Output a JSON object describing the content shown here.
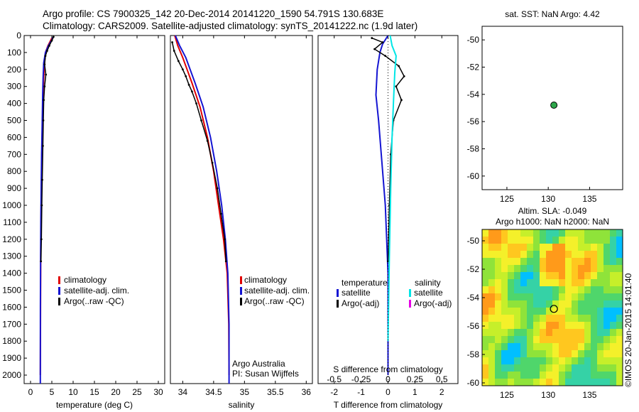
{
  "header": {
    "line1": "Argo profile: CS 7900325_142 20-Dec-2014 20141220_1590 54.791S 130.683E",
    "line2": "Climatology: CARS2009. Satellite-adjusted climatology: synTS_20141222.nc (1.9d later)"
  },
  "side_text": "©IMOS 20-Jan-2015 14:01:40",
  "colors": {
    "climatology": "#e00000",
    "satellite": "#1414d2",
    "argo": "#000000",
    "sal_satellite": "#00e6e6",
    "sal_argo": "#e600e6"
  },
  "chart_data": [
    {
      "type": "line",
      "panel": "temperature",
      "xlabel": "temperature (deg C)",
      "ylabel": "",
      "xlim": [
        -1.5,
        31.5
      ],
      "ylim": [
        2050,
        0
      ],
      "xticks": [
        "0",
        "5",
        "10",
        "15",
        "20",
        "25",
        "30"
      ],
      "yticks": [
        "0",
        "100",
        "200",
        "300",
        "400",
        "500",
        "600",
        "700",
        "800",
        "900",
        "1000",
        "1100",
        "1200",
        "1300",
        "1400",
        "1500",
        "1600",
        "1700",
        "1800",
        "1900",
        "2000"
      ],
      "legend": [
        "climatology",
        "satellite-adj. clim.",
        "Argo(..raw -QC)"
      ],
      "series": [
        {
          "name": "climatology",
          "color": "#e00000",
          "x": [
            5.0,
            4.7,
            4.1,
            3.5,
            3.3,
            3.1,
            2.95,
            2.8,
            2.65,
            2.55,
            2.45,
            2.4,
            2.35,
            2.3
          ],
          "y": [
            15,
            30,
            60,
            100,
            160,
            250,
            350,
            500,
            700,
            900,
            1100,
            1300,
            1600,
            2000
          ]
        },
        {
          "name": "satellite-adj. clim.",
          "color": "#1414d2",
          "x": [
            5.3,
            4.9,
            4.2,
            3.5,
            3.1,
            2.95,
            2.85,
            2.75,
            2.6,
            2.5,
            2.42,
            2.36,
            2.32,
            2.3
          ],
          "y": [
            10,
            30,
            60,
            100,
            160,
            250,
            350,
            500,
            700,
            900,
            1100,
            1300,
            1600,
            2050
          ]
        },
        {
          "name": "Argo(..raw -QC)",
          "color": "#000000",
          "x": [
            5.4,
            5.0,
            4.4,
            3.9,
            3.5,
            3.3,
            3.6,
            3.3,
            3.1,
            3.0,
            2.9,
            2.75,
            2.65,
            2.55,
            2.45
          ],
          "y": [
            8,
            30,
            60,
            90,
            120,
            170,
            230,
            300,
            380,
            500,
            650,
            850,
            1000,
            1200,
            1330
          ]
        }
      ]
    },
    {
      "type": "line",
      "panel": "salinity",
      "xlabel": "salinity",
      "ylabel": "",
      "xlim": [
        33.8,
        36.1
      ],
      "ylim": [
        2050,
        0
      ],
      "xticks": [
        "34",
        "34.5",
        "35",
        "35.5",
        "36"
      ],
      "legend": [
        "climatology",
        "satellite-adj. clim.",
        "Argo(..raw -QC)"
      ],
      "annotations": [
        "Argo Australia",
        "PI: Susan Wijffels"
      ],
      "series": [
        {
          "name": "climatology",
          "color": "#e00000",
          "x": [
            33.87,
            33.92,
            34.0,
            34.07,
            34.15,
            34.28,
            34.4,
            34.5,
            34.58,
            34.66,
            34.72,
            34.745,
            34.75
          ],
          "y": [
            0,
            60,
            130,
            200,
            280,
            420,
            600,
            800,
            1000,
            1200,
            1400,
            1700,
            2000
          ]
        },
        {
          "name": "satellite-adj. clim.",
          "color": "#1414d2",
          "x": [
            33.88,
            33.95,
            34.05,
            34.12,
            34.2,
            34.33,
            34.45,
            34.55,
            34.63,
            34.69,
            34.73,
            34.75,
            34.75
          ],
          "y": [
            0,
            60,
            130,
            200,
            280,
            420,
            600,
            800,
            1000,
            1200,
            1400,
            1700,
            2050
          ]
        },
        {
          "name": "Argo(..raw -QC)",
          "color": "#000000",
          "x": [
            33.83,
            33.86,
            33.93,
            34.0,
            34.05,
            34.1,
            34.15,
            34.22,
            34.3,
            34.4,
            34.48,
            34.56,
            34.62,
            34.68,
            34.7
          ],
          "y": [
            40,
            90,
            150,
            200,
            240,
            290,
            330,
            400,
            500,
            620,
            750,
            900,
            1050,
            1200,
            1330
          ]
        }
      ]
    },
    {
      "type": "line",
      "panel": "difference",
      "xlabel": "T difference from climatology",
      "xlabel_top": "S difference from climatology",
      "xlim": [
        -2.6,
        2.6
      ],
      "ylim": [
        2050,
        0
      ],
      "xticks": [
        "-2",
        "-1",
        "0",
        "1",
        "2"
      ],
      "xticks_top": [
        "-0.5",
        "-0.25",
        "0",
        "0.25",
        "0.5"
      ],
      "legend_titles": [
        "temperature",
        "salinity"
      ],
      "legend": [
        "satellite",
        "Argo(-adj)",
        "satellite",
        "Argo(-adj)"
      ],
      "series": [
        {
          "name": "satellite",
          "color": "#1414d2",
          "x": [
            0.0,
            -0.2,
            -0.3,
            -0.4,
            -0.45,
            -0.35,
            -0.25,
            -0.1,
            0.0,
            0.0,
            0.0
          ],
          "y": [
            0,
            50,
            100,
            200,
            350,
            500,
            700,
            1000,
            1400,
            1800,
            2000
          ]
        },
        {
          "name": "Argo(-adj)",
          "color": "#000000",
          "x": [
            -0.6,
            -0.2,
            -0.5,
            -0.1,
            0.4,
            0.6,
            0.3,
            0.5,
            0.2,
            0.1,
            0.05,
            0.0
          ],
          "y": [
            15,
            40,
            80,
            120,
            180,
            240,
            300,
            380,
            500,
            700,
            1000,
            1330
          ]
        },
        {
          "name": "satellite",
          "color": "#00e6e6",
          "x": [
            0.08,
            0.15,
            0.3,
            0.25,
            0.2,
            0.15,
            0.1,
            0.05,
            0.0
          ],
          "y": [
            0,
            60,
            120,
            220,
            400,
            600,
            900,
            1300,
            1800
          ]
        },
        {
          "name": "Argo(-adj)",
          "color": "#e600e6",
          "x": [],
          "y": []
        }
      ]
    },
    {
      "type": "scatter",
      "panel": "sst-map",
      "title": "sat. SST: NaN Argo: 4.42",
      "xlim": [
        122,
        139
      ],
      "ylim": [
        -61,
        -49
      ],
      "xticks": [
        "125",
        "130",
        "135"
      ],
      "yticks": [
        "-50",
        "-52",
        "-54",
        "-56",
        "-58",
        "-60"
      ],
      "points": [
        {
          "x": 130.683,
          "y": -54.791
        }
      ]
    },
    {
      "type": "heatmap",
      "panel": "sla-map",
      "title": "Altim. SLA: -0.049",
      "subtitle": "Argo h1000: NaN h2000: NaN",
      "xlim": [
        122,
        139
      ],
      "ylim": [
        -60.2,
        -49.2
      ],
      "xticks": [
        "125",
        "130",
        "135"
      ],
      "yticks": [
        "-50",
        "-52",
        "-54",
        "-56",
        "-58",
        "-60"
      ],
      "points": [
        {
          "x": 130.683,
          "y": -54.791
        }
      ]
    }
  ]
}
